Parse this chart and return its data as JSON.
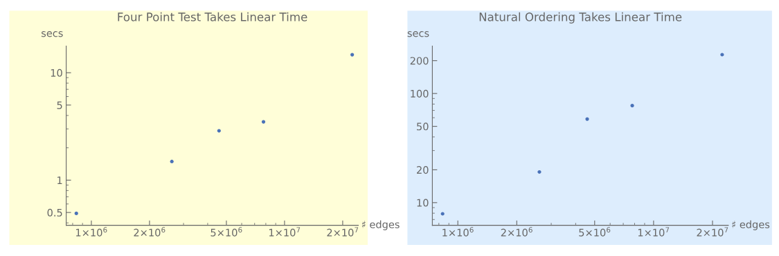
{
  "chart_data": [
    {
      "type": "scatter",
      "title": "Four Point Test Takes Linear Time",
      "xlabel": "♯ edges",
      "ylabel": "secs",
      "log": "xy",
      "grid": false,
      "legend": false,
      "marker": "circle",
      "x": [
        836000,
        2610000,
        4580000,
        7780000,
        22400000
      ],
      "series": [
        {
          "color": "#4a72b8",
          "values": [
            0.49,
            1.49,
            2.88,
            3.49,
            14.7
          ]
        }
      ],
      "xlim": [
        741000,
        24100000
      ],
      "ylim": [
        0.38,
        17.7
      ],
      "xticks": [
        {
          "value": 1000000,
          "label": "1×10$^{6}$"
        },
        {
          "value": 2000000,
          "label": "2×10$^{6}$"
        },
        {
          "value": 5000000,
          "label": "5×10$^{6}$"
        },
        {
          "value": 10000000,
          "label": "1×10$^{7}$"
        },
        {
          "value": 20000000,
          "label": "2×10$^{7}$"
        }
      ],
      "yticks": [
        0.5,
        1,
        5,
        10
      ]
    },
    {
      "type": "scatter",
      "title": "Natural Ordering Takes Linear Time",
      "xlabel": "♯ edges",
      "ylabel": "secs",
      "log": "xy",
      "grid": false,
      "legend": false,
      "marker": "circle",
      "x": [
        836000,
        2610000,
        4580000,
        7780000,
        22400000
      ],
      "series": [
        {
          "color": "#4a72b8",
          "values": [
            7.9,
            19.1,
            58.3,
            77.4,
            227
          ]
        }
      ],
      "xlim": [
        741000,
        24100000
      ],
      "ylim": [
        6.2,
        272
      ],
      "xticks": [
        {
          "value": 1000000,
          "label": "1×10$^{6}$"
        },
        {
          "value": 2000000,
          "label": "2×10$^{6}$"
        },
        {
          "value": 5000000,
          "label": "5×10$^{6}$"
        },
        {
          "value": 10000000,
          "label": "1×10$^{7}$"
        },
        {
          "value": 20000000,
          "label": "2×10$^{7}$"
        }
      ],
      "yticks": [
        10,
        20,
        50,
        100,
        200
      ]
    }
  ]
}
